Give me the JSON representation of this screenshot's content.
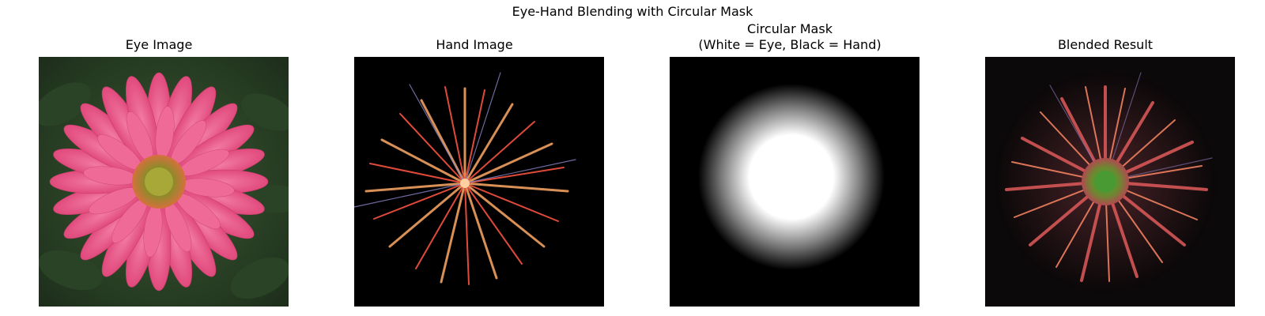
{
  "figure": {
    "title": "Eye-Hand Blending with Circular Mask"
  },
  "panels": [
    {
      "title": "Eye Image",
      "image": "pink gerbera daisy photo"
    },
    {
      "title": "Hand Image",
      "image": "orange firework burst on black"
    },
    {
      "title": "Circular Mask\n(White = Eye, Black = Hand)",
      "image": "white blurred circle on black"
    },
    {
      "title": "Blended Result",
      "image": "flower blended with firework"
    }
  ],
  "colors": {
    "flower_pink": "#ec5a8a",
    "flower_center": "#a8a838",
    "foliage": "#2f4a2a",
    "firework_orange": "#f08a4a",
    "firework_red": "#e04a3a",
    "mask_white": "#ffffff",
    "background_black": "#000000"
  }
}
